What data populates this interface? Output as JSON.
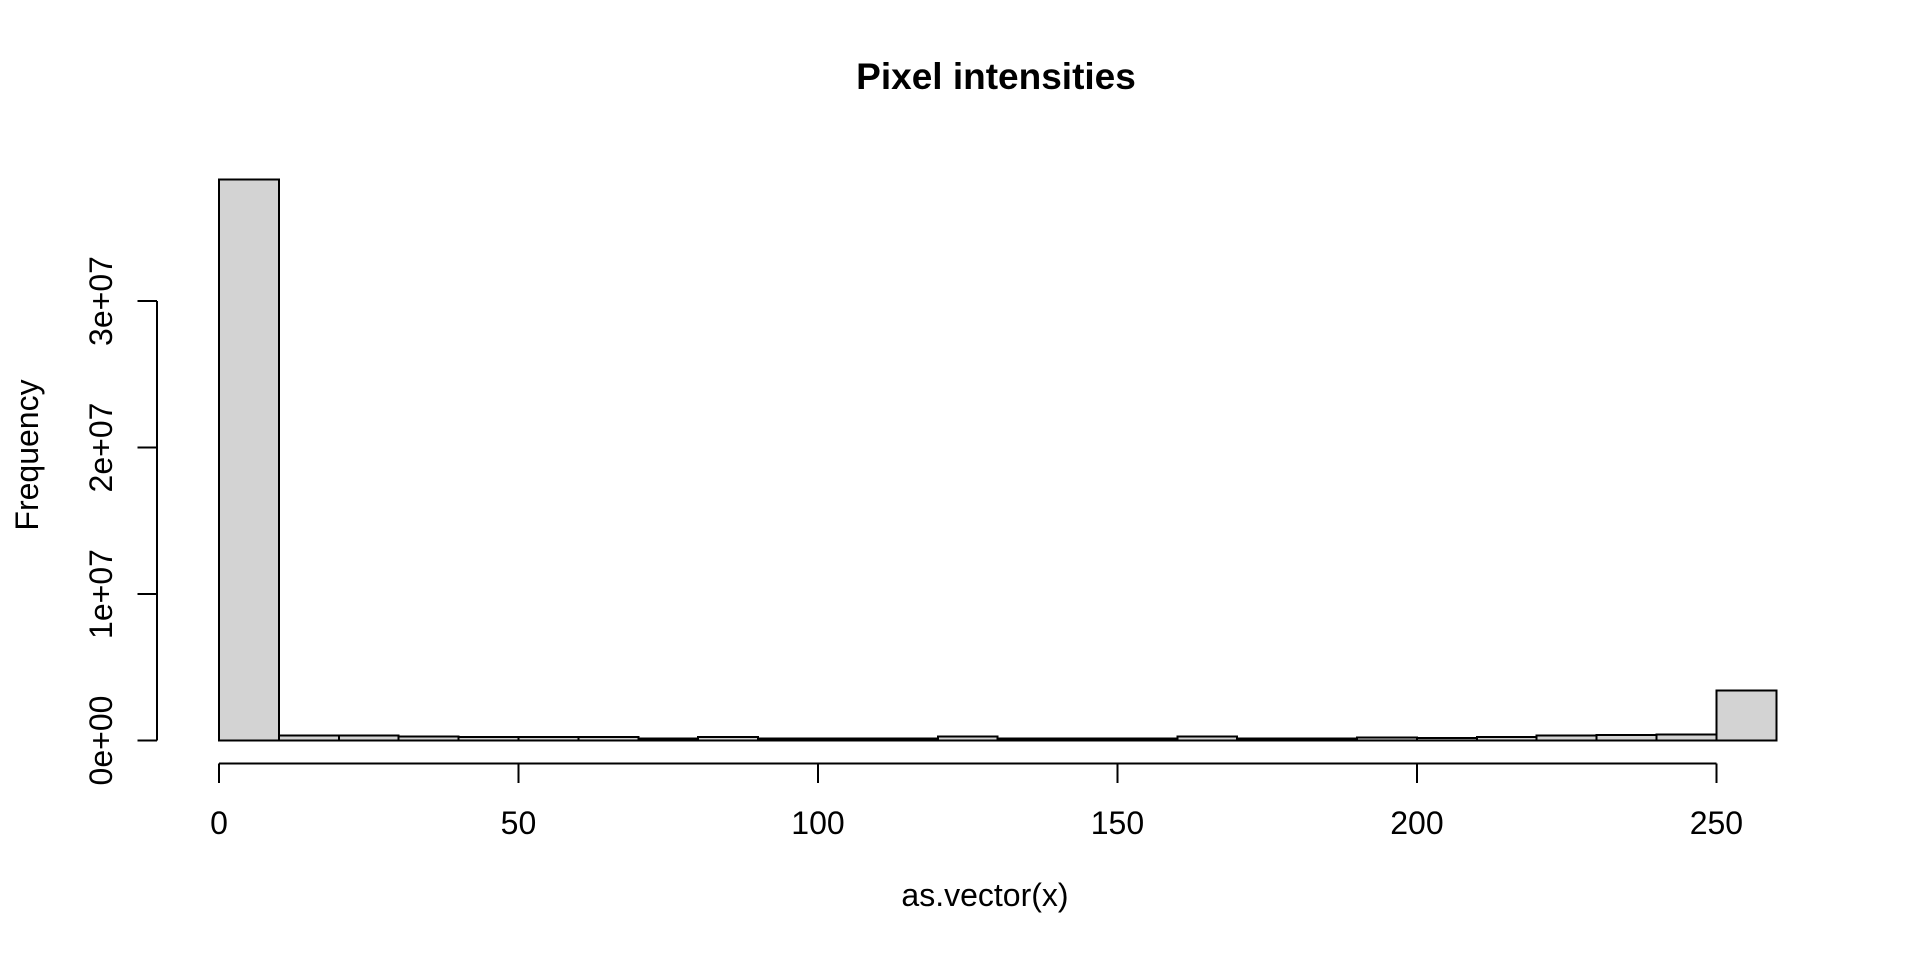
{
  "page": {
    "background_color": "#ffffff",
    "text_color": "#000000"
  },
  "chart_data": {
    "type": "bar",
    "subtype": "histogram",
    "title": "Pixel intensities",
    "xlabel": "as.vector(x)",
    "ylabel": "Frequency",
    "bin_breaks": [
      0,
      10,
      20,
      30,
      40,
      50,
      60,
      70,
      80,
      90,
      100,
      110,
      120,
      130,
      140,
      150,
      160,
      170,
      180,
      190,
      200,
      210,
      220,
      230,
      240,
      250,
      260
    ],
    "counts": [
      38300000,
      340000,
      340000,
      270000,
      240000,
      240000,
      240000,
      140000,
      240000,
      140000,
      140000,
      140000,
      270000,
      140000,
      140000,
      140000,
      270000,
      140000,
      140000,
      200000,
      170000,
      240000,
      340000,
      370000,
      410000,
      3400000
    ],
    "xlim": [
      0,
      260
    ],
    "ylim": [
      0,
      30000000
    ],
    "x_ticks": {
      "values": [
        0,
        50,
        100,
        150,
        200,
        250
      ],
      "labels": [
        "0",
        "50",
        "100",
        "150",
        "200",
        "250"
      ]
    },
    "y_ticks": {
      "values": [
        0,
        10000000,
        20000000,
        30000000
      ],
      "labels": [
        "0e+00",
        "1e+07",
        "2e+07",
        "3e+07"
      ]
    },
    "grid": false,
    "legend": null,
    "style": {
      "bar_fill": "#d3d3d3",
      "bar_stroke": "#000000",
      "axis_color": "#000000",
      "background": "#ffffff"
    }
  }
}
